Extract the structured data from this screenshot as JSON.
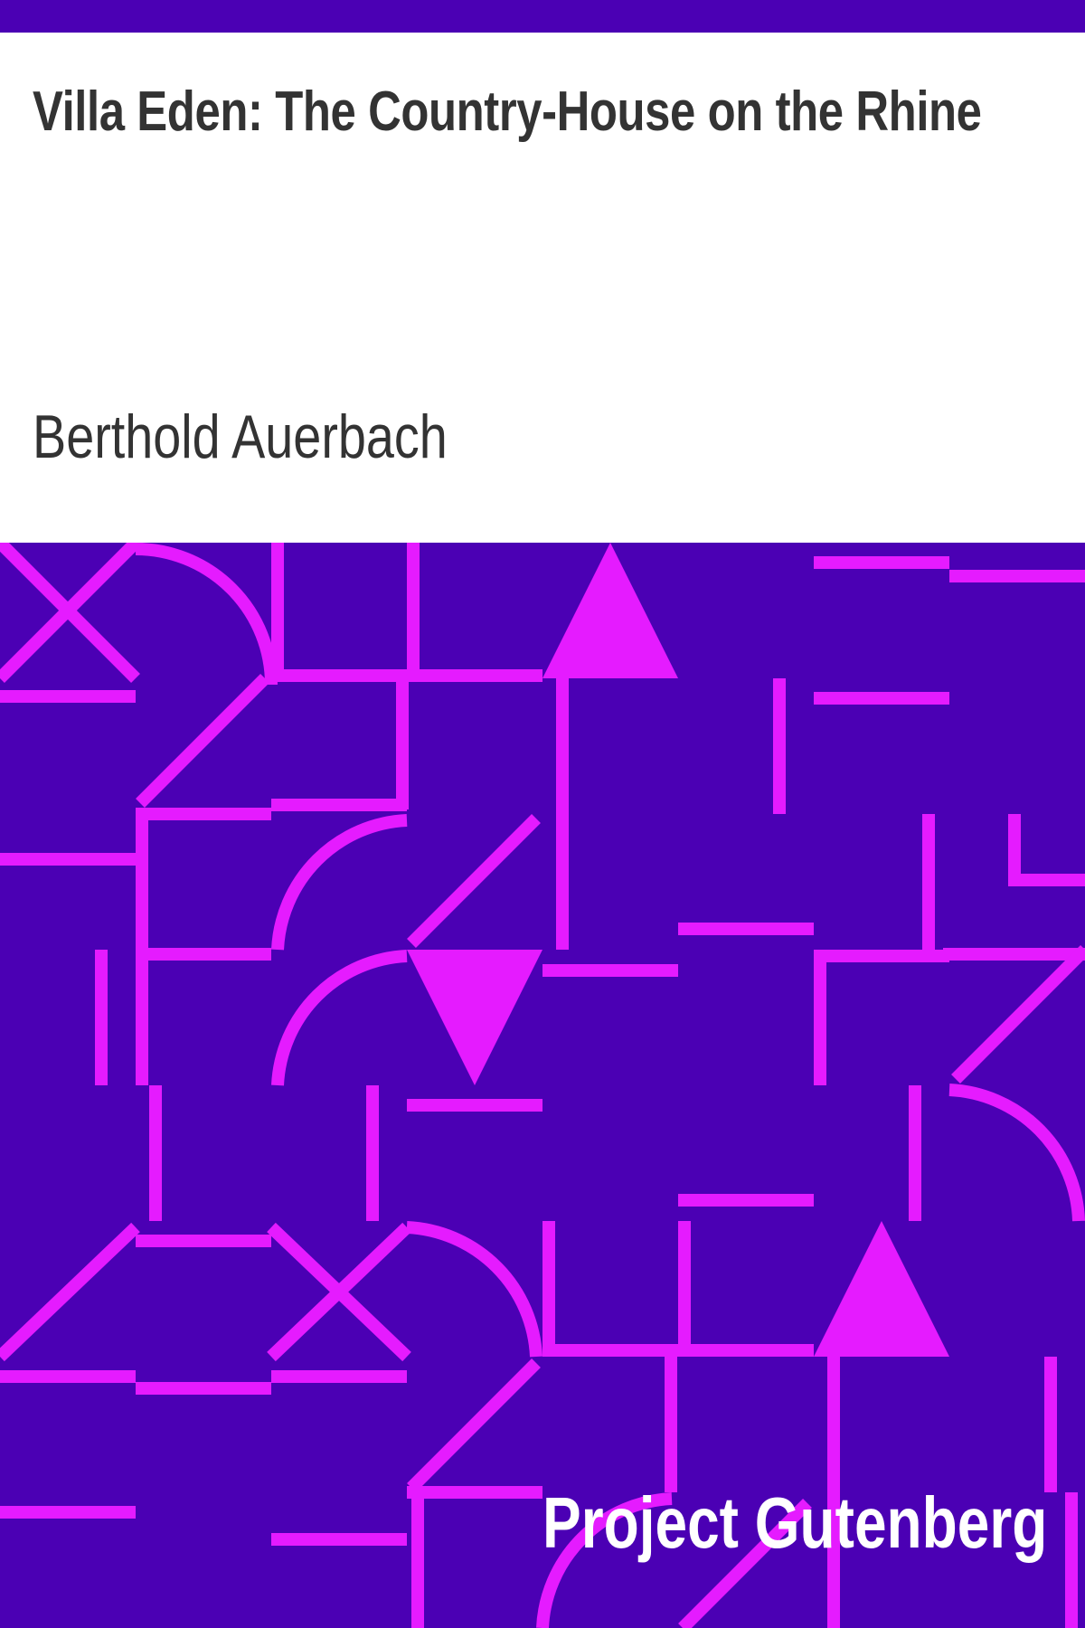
{
  "cover": {
    "title": "Villa Eden: The Country-House on the Rhine",
    "author": "Berthold Auerbach",
    "publisher": "Project Gutenberg"
  },
  "colors": {
    "header_bar": "#4b00b4",
    "pattern_background": "#4b00b4",
    "pattern_lines": "#e51bff",
    "title_text": "#333333",
    "publisher_text": "#ffffff"
  }
}
